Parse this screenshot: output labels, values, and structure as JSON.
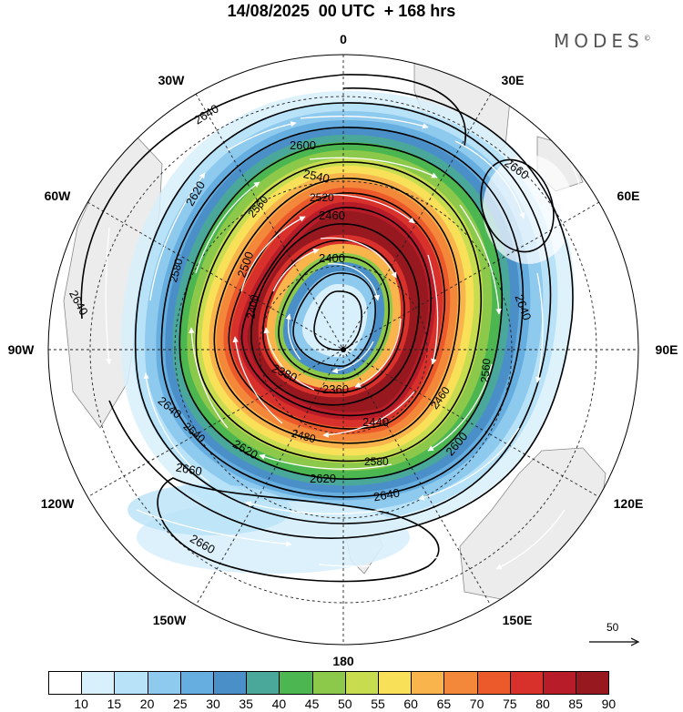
{
  "header": {
    "title": "14/08/2025  00 UTC  + 168 hrs",
    "brand": "MODES",
    "brand_mark": "©"
  },
  "longitudes": {
    "n": "0",
    "ne": "30E",
    "e1": "60E",
    "e": "90E",
    "se1": "120E",
    "se2": "150E",
    "s": "180",
    "sw2": "150W",
    "sw1": "120W",
    "w": "90W",
    "nw1": "60W",
    "nw2": "30W"
  },
  "contours": {
    "c2360": "2360",
    "c2380": "2380",
    "c2400a": "2400",
    "c2400b": "2400",
    "c2440": "2440",
    "c2460a": "2460",
    "c2460b": "2460",
    "c2480": "2480",
    "c2500": "2500",
    "c2520": "2520",
    "c2540": "2540",
    "c2560a": "2560",
    "c2560b": "2560",
    "c2580": "2580",
    "c2600a": "2600",
    "c2600b": "2600",
    "c2620a": "2620",
    "c2620b": "2620",
    "c2620c": "2620",
    "c2640a": "2640",
    "c2640b": "2640",
    "c2640c": "2640",
    "c2640d": "2640",
    "c2640e": "2640",
    "c2660a": "2660",
    "c2660b": "2660",
    "c2660c": "2660"
  },
  "reference_vector": {
    "value": "50"
  },
  "colorbar": {
    "colors": [
      "#ffffff",
      "#d8f0fb",
      "#b8e2f8",
      "#8ec9ee",
      "#66aedf",
      "#4a8fc8",
      "#4aa89a",
      "#4cb750",
      "#8cc94a",
      "#c8dc50",
      "#f8e058",
      "#f9b44c",
      "#f4883a",
      "#ec5a2c",
      "#d8302a",
      "#b81c28",
      "#981820"
    ],
    "labels": [
      "10",
      "15",
      "20",
      "25",
      "30",
      "35",
      "40",
      "45",
      "50",
      "55",
      "60",
      "65",
      "70",
      "75",
      "80",
      "85",
      "90"
    ]
  }
}
